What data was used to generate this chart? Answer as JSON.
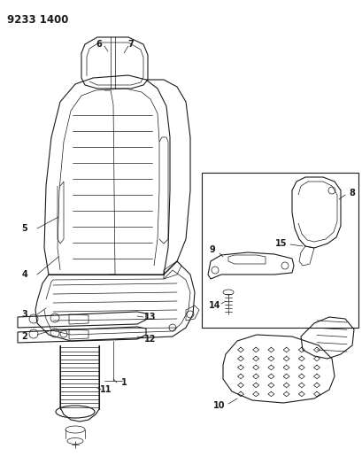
{
  "title": "9233 1400",
  "bg_color": "#ffffff",
  "line_color": "#1a1a1a",
  "title_fontsize": 8.5,
  "label_fontsize": 7
}
